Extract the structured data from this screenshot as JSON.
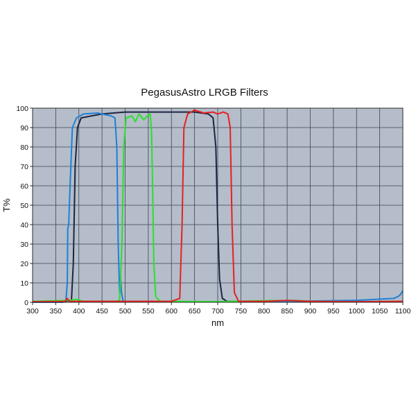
{
  "chart_data": {
    "type": "line",
    "title": "PegasusAstro LRGB Filters",
    "xlabel": "nm",
    "ylabel": "T%",
    "xlim": [
      300,
      1100
    ],
    "ylim": [
      0,
      100
    ],
    "x_ticks": [
      300,
      350,
      400,
      450,
      500,
      550,
      600,
      650,
      700,
      750,
      800,
      850,
      900,
      950,
      1000,
      1050,
      1100
    ],
    "y_ticks": [
      0,
      10,
      20,
      30,
      40,
      50,
      60,
      70,
      80,
      90,
      100
    ],
    "grid": true,
    "plot_background": "#b4bdc9",
    "series": [
      {
        "color": "#1c2440",
        "points": [
          [
            300,
            0
          ],
          [
            370,
            0.5
          ],
          [
            384,
            1
          ],
          [
            388,
            20
          ],
          [
            392,
            70
          ],
          [
            397,
            90
          ],
          [
            405,
            95
          ],
          [
            450,
            97
          ],
          [
            500,
            98
          ],
          [
            550,
            98
          ],
          [
            600,
            98
          ],
          [
            650,
            98
          ],
          [
            680,
            97
          ],
          [
            690,
            95
          ],
          [
            696,
            80
          ],
          [
            700,
            40
          ],
          [
            704,
            12
          ],
          [
            710,
            2
          ],
          [
            720,
            0.5
          ],
          [
            800,
            0.3
          ],
          [
            900,
            0.3
          ],
          [
            1000,
            0.3
          ],
          [
            1100,
            0.3
          ]
        ]
      },
      {
        "color": "#1f7fd6",
        "points": [
          [
            300,
            0
          ],
          [
            365,
            0
          ],
          [
            372,
            1
          ],
          [
            375,
            10
          ],
          [
            376,
            38
          ],
          [
            378,
            40
          ],
          [
            381,
            60
          ],
          [
            386,
            90
          ],
          [
            395,
            95
          ],
          [
            410,
            97
          ],
          [
            440,
            97.5
          ],
          [
            470,
            96
          ],
          [
            478,
            95
          ],
          [
            482,
            80
          ],
          [
            485,
            30
          ],
          [
            488,
            5
          ],
          [
            490,
            13
          ],
          [
            492,
            5
          ],
          [
            496,
            0.5
          ],
          [
            600,
            0.3
          ],
          [
            800,
            0.3
          ],
          [
            1000,
            1
          ],
          [
            1080,
            2
          ],
          [
            1090,
            3
          ],
          [
            1095,
            4
          ],
          [
            1100,
            6
          ]
        ]
      },
      {
        "color": "#2ae02a",
        "points": [
          [
            300,
            0.5
          ],
          [
            380,
            1
          ],
          [
            395,
            1.5
          ],
          [
            410,
            0.5
          ],
          [
            480,
            0.5
          ],
          [
            488,
            1
          ],
          [
            493,
            30
          ],
          [
            497,
            80
          ],
          [
            502,
            95
          ],
          [
            515,
            96
          ],
          [
            522,
            93
          ],
          [
            530,
            97
          ],
          [
            540,
            94
          ],
          [
            548,
            96
          ],
          [
            554,
            97
          ],
          [
            557,
            88
          ],
          [
            560,
            50
          ],
          [
            562,
            20
          ],
          [
            566,
            3
          ],
          [
            575,
            0.5
          ],
          [
            700,
            0.3
          ],
          [
            800,
            0.8
          ],
          [
            870,
            1
          ],
          [
            900,
            0.5
          ],
          [
            1000,
            0.3
          ],
          [
            1100,
            0.5
          ]
        ]
      },
      {
        "color": "#e62020",
        "points": [
          [
            300,
            0.3
          ],
          [
            370,
            0.5
          ],
          [
            375,
            2
          ],
          [
            380,
            0.5
          ],
          [
            600,
            0.5
          ],
          [
            618,
            2
          ],
          [
            623,
            40
          ],
          [
            627,
            90
          ],
          [
            635,
            97
          ],
          [
            650,
            99
          ],
          [
            670,
            97.5
          ],
          [
            690,
            98
          ],
          [
            700,
            97
          ],
          [
            712,
            98
          ],
          [
            722,
            97
          ],
          [
            727,
            90
          ],
          [
            731,
            40
          ],
          [
            736,
            5
          ],
          [
            745,
            0.5
          ],
          [
            800,
            0.5
          ],
          [
            850,
            1
          ],
          [
            900,
            0.5
          ],
          [
            1000,
            0.3
          ],
          [
            1100,
            0.5
          ]
        ]
      }
    ]
  }
}
